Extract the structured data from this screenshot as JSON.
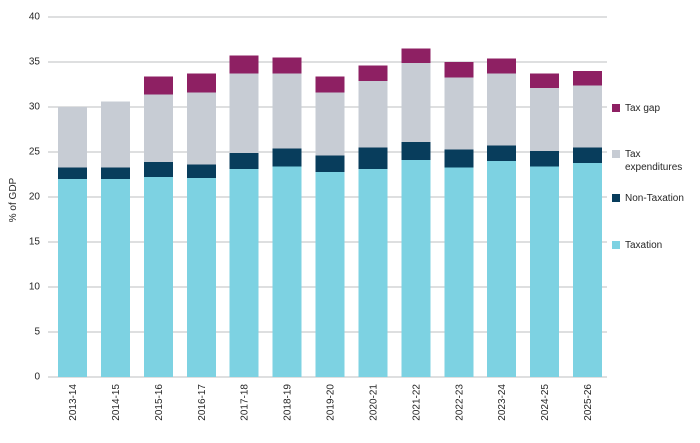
{
  "chart_data": {
    "type": "bar",
    "stacked": true,
    "title": "",
    "ylabel": "% of GDP",
    "xlabel": "",
    "ylim": [
      0,
      40
    ],
    "yticks": [
      0,
      5,
      10,
      15,
      20,
      25,
      30,
      35,
      40
    ],
    "grid": true,
    "legend_position": "right",
    "categories": [
      "2013-14",
      "2014-15",
      "2015-16",
      "2016-17",
      "2017-18",
      "2018-19",
      "2019-20",
      "2020-21",
      "2021-22",
      "2022-23",
      "2023-24",
      "2024-25",
      "2025-26"
    ],
    "series": [
      {
        "name": "Taxation",
        "color": "#7dd2e2",
        "values": [
          22.0,
          22.0,
          22.2,
          22.1,
          23.1,
          23.4,
          22.8,
          23.1,
          24.1,
          23.3,
          24.0,
          23.4,
          23.8
        ]
      },
      {
        "name": "Non-Taxation",
        "color": "#083d5c",
        "values": [
          1.3,
          1.3,
          1.7,
          1.5,
          1.8,
          2.0,
          1.8,
          2.4,
          2.0,
          2.0,
          1.7,
          1.7,
          1.7
        ]
      },
      {
        "name": "Tax expenditures",
        "color": "#c7ccd4",
        "values": [
          6.7,
          7.3,
          7.5,
          8.0,
          8.8,
          8.3,
          7.0,
          7.4,
          8.8,
          8.0,
          8.0,
          7.0,
          6.9
        ]
      },
      {
        "name": "Tax gap",
        "color": "#8e2063",
        "values": [
          0,
          0,
          2.0,
          2.1,
          2.0,
          1.8,
          1.8,
          1.7,
          1.6,
          1.7,
          1.7,
          1.6,
          1.6
        ]
      }
    ],
    "stack_totals": [
      30.0,
      30.6,
      33.4,
      33.7,
      35.7,
      35.5,
      33.4,
      34.6,
      36.5,
      35.0,
      35.4,
      33.7,
      34.0
    ]
  }
}
